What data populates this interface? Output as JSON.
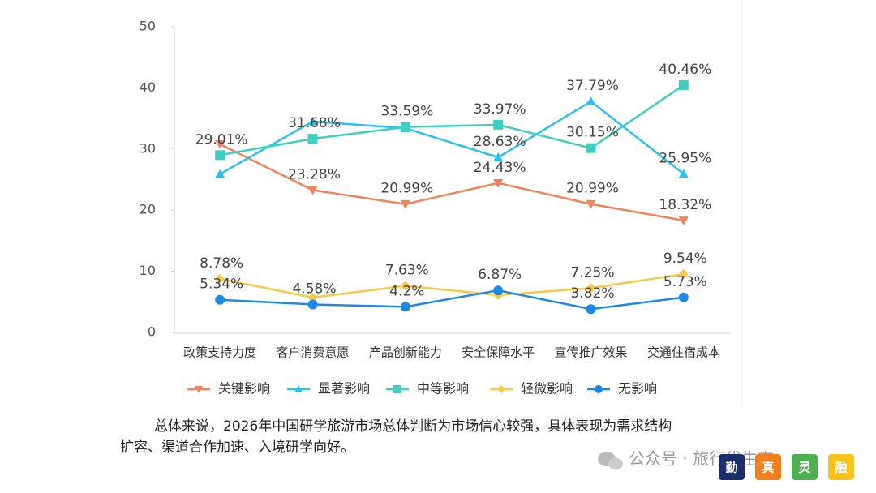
{
  "chart_data": {
    "type": "line",
    "categories": [
      "政策支持力度",
      "客户消费意愿",
      "产品创新能力",
      "安全保障水平",
      "宣传推广效果",
      "交通住宿成本"
    ],
    "ylim": [
      0,
      50
    ],
    "yticks": [
      0,
      10,
      20,
      30,
      40,
      50
    ],
    "legend": "bottom",
    "series": [
      {
        "name": "关键影响",
        "color": "#f0845a",
        "marker": "triangle-down",
        "values": [
          30.8,
          23.28,
          20.99,
          24.43,
          20.99,
          18.32
        ],
        "value_labels": [
          null,
          "23.28%",
          "20.99%",
          "24.43%",
          "20.99%",
          "18.32%"
        ]
      },
      {
        "name": "显著影响",
        "color": "#2ec0ee",
        "marker": "triangle-up",
        "values": [
          25.9,
          34.5,
          33.4,
          28.63,
          37.79,
          25.95
        ],
        "value_labels": [
          null,
          null,
          null,
          "28.63%",
          "37.79%",
          "25.95%"
        ]
      },
      {
        "name": "中等影响",
        "color": "#3ecfc0",
        "marker": "square",
        "values": [
          29.01,
          31.68,
          33.59,
          33.97,
          30.15,
          40.46
        ],
        "value_labels": [
          "29.01%",
          "31.68%",
          "33.59%",
          "33.97%",
          "30.15%",
          "40.46%"
        ]
      },
      {
        "name": "轻微影响",
        "color": "#f7c948",
        "marker": "diamond",
        "values": [
          8.78,
          5.7,
          7.63,
          6.1,
          7.25,
          9.54
        ],
        "value_labels": [
          "8.78%",
          null,
          "7.63%",
          null,
          "7.25%",
          "9.54%"
        ]
      },
      {
        "name": "无影响",
        "color": "#1e88e5",
        "marker": "circle",
        "values": [
          5.34,
          4.58,
          4.2,
          6.87,
          3.82,
          5.73
        ],
        "value_labels": [
          "5.34%",
          "4.58%",
          "4.2%",
          "6.87%",
          "3.82%",
          "5.73%"
        ]
      }
    ]
  },
  "paragraph": [
    "总体来说，2026年中国研学旅游市场总体判断为市场信心较强，具体表现为需求结构",
    "扩容、渠道合作加速、入境研学向好。"
  ],
  "watermark": "公众号 · 旅行优生态",
  "badges": [
    "勤",
    "真",
    "灵",
    "融"
  ]
}
